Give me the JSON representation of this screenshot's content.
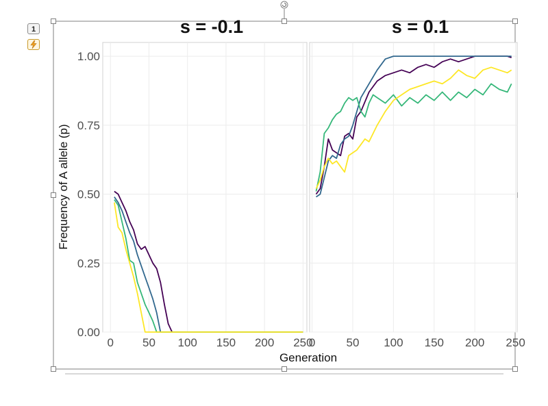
{
  "toolbar": {
    "layout_badge_label": "1",
    "layout_options_icon": "lightning-icon",
    "rotate_handle_icon": "rotate-icon"
  },
  "chart_data": {
    "type": "line",
    "ylabel": "Frequency of A allele (p)",
    "xlabel": "Generation",
    "ylim": [
      0,
      1.05
    ],
    "yticks": [
      0.0,
      0.25,
      0.5,
      0.75,
      1.0
    ],
    "ytick_labels": [
      "0.00",
      "0.25",
      "0.50",
      "0.75",
      "1.00"
    ],
    "grid": true,
    "legend": "none",
    "colors": [
      "#440154",
      "#31688e",
      "#35b779",
      "#fde725"
    ],
    "panels": [
      {
        "title": "s = -0.1",
        "xlim": [
          -10,
          255
        ],
        "xticks": [
          0,
          50,
          100,
          150,
          200,
          250
        ],
        "xtick_labels": [
          "0",
          "50",
          "100",
          "150",
          "200",
          "250"
        ],
        "series": [
          {
            "color": "#440154",
            "x": [
              5,
              10,
              15,
              20,
              25,
              30,
              35,
              40,
              45,
              50,
              55,
              60,
              65,
              70,
              75,
              80,
              250
            ],
            "y": [
              0.51,
              0.5,
              0.47,
              0.44,
              0.4,
              0.37,
              0.32,
              0.3,
              0.31,
              0.28,
              0.25,
              0.23,
              0.18,
              0.1,
              0.03,
              0.0,
              0.0
            ]
          },
          {
            "color": "#31688e",
            "x": [
              5,
              10,
              15,
              20,
              25,
              30,
              35,
              40,
              45,
              50,
              55,
              60,
              65,
              70,
              250
            ],
            "y": [
              0.49,
              0.47,
              0.44,
              0.4,
              0.36,
              0.33,
              0.28,
              0.24,
              0.2,
              0.16,
              0.12,
              0.07,
              0.0,
              0.0,
              0.0
            ]
          },
          {
            "color": "#35b779",
            "x": [
              5,
              10,
              15,
              20,
              25,
              30,
              35,
              40,
              45,
              50,
              55,
              60,
              250
            ],
            "y": [
              0.48,
              0.46,
              0.4,
              0.34,
              0.26,
              0.25,
              0.18,
              0.14,
              0.1,
              0.07,
              0.04,
              0.0,
              0.0
            ]
          },
          {
            "color": "#fde725",
            "x": [
              5,
              10,
              15,
              20,
              25,
              30,
              35,
              40,
              45,
              250
            ],
            "y": [
              0.47,
              0.38,
              0.36,
              0.3,
              0.25,
              0.2,
              0.14,
              0.07,
              0.0,
              0.0
            ]
          }
        ]
      },
      {
        "title": "s = 0.1",
        "xlim": [
          -3,
          252
        ],
        "xticks": [
          0,
          50,
          100,
          150,
          200,
          250
        ],
        "xtick_labels": [
          "0",
          "50",
          "100",
          "150",
          "200",
          "250"
        ],
        "series": [
          {
            "color": "#440154",
            "x": [
              5,
              10,
              15,
              20,
              25,
              30,
              35,
              40,
              45,
              50,
              55,
              60,
              70,
              80,
              90,
              100,
              110,
              120,
              130,
              140,
              150,
              160,
              170,
              180,
              190,
              200,
              210,
              220,
              230,
              240,
              245
            ],
            "y": [
              0.5,
              0.52,
              0.6,
              0.7,
              0.66,
              0.65,
              0.64,
              0.71,
              0.72,
              0.7,
              0.78,
              0.8,
              0.87,
              0.91,
              0.93,
              0.94,
              0.95,
              0.94,
              0.96,
              0.97,
              0.96,
              0.98,
              0.99,
              0.98,
              0.99,
              1.0,
              1.0,
              1.0,
              1.0,
              1.0,
              0.995
            ]
          },
          {
            "color": "#31688e",
            "x": [
              5,
              10,
              15,
              20,
              25,
              30,
              35,
              40,
              45,
              50,
              60,
              70,
              80,
              90,
              100,
              110,
              120,
              130,
              140,
              150,
              160,
              170,
              180,
              190,
              200,
              210,
              220,
              230,
              240,
              245
            ],
            "y": [
              0.49,
              0.5,
              0.56,
              0.62,
              0.64,
              0.63,
              0.68,
              0.7,
              0.71,
              0.75,
              0.85,
              0.9,
              0.95,
              0.99,
              1.0,
              1.0,
              1.0,
              1.0,
              1.0,
              1.0,
              1.0,
              1.0,
              1.0,
              1.0,
              1.0,
              1.0,
              1.0,
              1.0,
              1.0,
              1.0
            ]
          },
          {
            "color": "#35b779",
            "x": [
              5,
              10,
              15,
              20,
              25,
              30,
              35,
              40,
              45,
              50,
              55,
              60,
              65,
              70,
              75,
              80,
              90,
              100,
              110,
              120,
              130,
              140,
              150,
              160,
              170,
              180,
              190,
              200,
              210,
              220,
              230,
              240,
              245
            ],
            "y": [
              0.51,
              0.58,
              0.72,
              0.74,
              0.77,
              0.79,
              0.8,
              0.83,
              0.85,
              0.84,
              0.85,
              0.8,
              0.78,
              0.83,
              0.86,
              0.85,
              0.83,
              0.86,
              0.82,
              0.85,
              0.83,
              0.86,
              0.84,
              0.87,
              0.84,
              0.87,
              0.85,
              0.88,
              0.86,
              0.9,
              0.88,
              0.87,
              0.9
            ]
          },
          {
            "color": "#fde725",
            "x": [
              5,
              10,
              15,
              20,
              25,
              30,
              35,
              40,
              45,
              50,
              55,
              60,
              65,
              70,
              80,
              90,
              100,
              110,
              120,
              130,
              140,
              150,
              160,
              170,
              180,
              190,
              200,
              210,
              220,
              230,
              240,
              245
            ],
            "y": [
              0.52,
              0.55,
              0.6,
              0.63,
              0.61,
              0.62,
              0.6,
              0.58,
              0.64,
              0.65,
              0.66,
              0.68,
              0.7,
              0.69,
              0.75,
              0.8,
              0.84,
              0.86,
              0.88,
              0.89,
              0.9,
              0.91,
              0.9,
              0.92,
              0.95,
              0.93,
              0.92,
              0.95,
              0.96,
              0.95,
              0.94,
              0.95
            ]
          }
        ]
      }
    ]
  }
}
